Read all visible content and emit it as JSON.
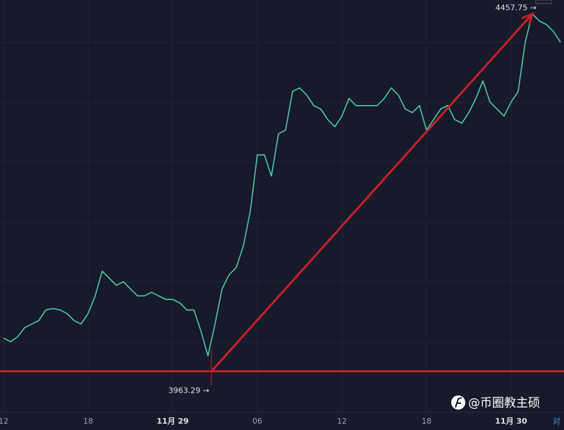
{
  "chart_data": {
    "type": "line",
    "categories": [
      "12",
      null,
      null,
      null,
      null,
      null,
      null,
      null,
      null,
      null,
      null,
      null,
      "18",
      null,
      null,
      null,
      null,
      null,
      null,
      null,
      null,
      null,
      null,
      null,
      "11月 29",
      null,
      null,
      null,
      null,
      null,
      null,
      null,
      null,
      null,
      null,
      null,
      "06",
      null,
      null,
      null,
      null,
      null,
      null,
      null,
      null,
      null,
      null,
      null,
      "12",
      null,
      null,
      null,
      null,
      null,
      null,
      null,
      null,
      null,
      null,
      null,
      "18",
      null,
      null,
      null,
      null,
      null,
      null,
      null,
      null,
      null,
      null,
      null,
      "11月 30",
      null,
      null,
      null,
      null,
      null,
      null,
      null
    ],
    "values": [
      4008.5,
      4003.7,
      4010.4,
      4022.9,
      4027.8,
      4032.6,
      4047.1,
      4049.0,
      4047.1,
      4042.3,
      4032.6,
      4027.8,
      4042.3,
      4066.4,
      4100.1,
      4090.5,
      4080.8,
      4085.6,
      4076.0,
      4066.4,
      4066.4,
      4071.2,
      4066.4,
      4061.6,
      4061.6,
      4056.7,
      4047.1,
      4047.1,
      4018.2,
      3984.4,
      4027.8,
      4076.0,
      4095.3,
      4104.9,
      4133.9,
      4182.0,
      4259.2,
      4259.2,
      4230.2,
      4288.1,
      4292.9,
      4345.9,
      4350.8,
      4341.1,
      4326.6,
      4321.8,
      4307.4,
      4297.7,
      4312.2,
      4336.3,
      4326.6,
      4326.6,
      4326.6,
      4326.6,
      4336.3,
      4350.8,
      4341.1,
      4321.8,
      4317.0,
      4326.6,
      4292.9,
      4307.4,
      4321.8,
      4326.6,
      4307.4,
      4302.5,
      4317.0,
      4336.3,
      4360.4,
      4331.5,
      4321.8,
      4312.2,
      4331.5,
      4345.9,
      4413.4,
      4452.0,
      4442.3,
      4437.5,
      4427.9,
      4413.4
    ],
    "color": "#4cc9a8",
    "ylim": [
      3907,
      4471
    ],
    "annotations": [
      {
        "value": 3963.29,
        "label": "3963.29 →"
      },
      {
        "value": 4457.75,
        "label": "4457.75 →"
      }
    ],
    "scale_label": "对",
    "watermark": "@币圈教主硕"
  }
}
